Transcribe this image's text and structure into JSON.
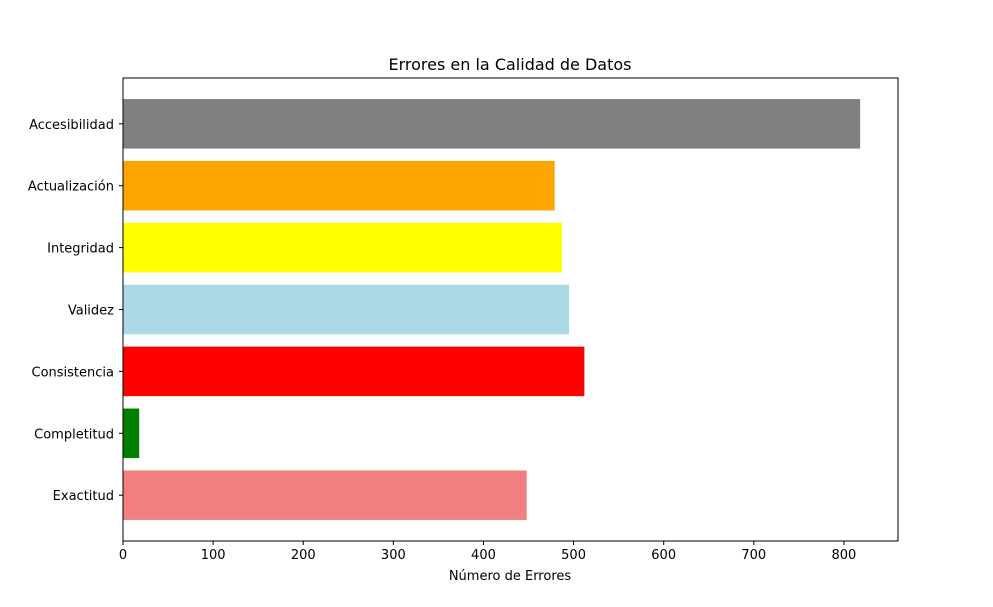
{
  "chart_data": {
    "type": "bar",
    "orientation": "horizontal",
    "title": "Errores en la Calidad de Datos",
    "xlabel": "Número de Errores",
    "ylabel": "",
    "xlim": [
      0,
      860
    ],
    "xticks": [
      0,
      100,
      200,
      300,
      400,
      500,
      600,
      700,
      800
    ],
    "grid": false,
    "categories": [
      "Exactitud",
      "Completitud",
      "Consistencia",
      "Validez",
      "Integridad",
      "Actualización",
      "Accesibilidad"
    ],
    "values": [
      448,
      18,
      512,
      495,
      487,
      479,
      818
    ],
    "colors": [
      "#f08080",
      "#008000",
      "#ff0000",
      "#add8e6",
      "#ffff00",
      "#ffa500",
      "#808080"
    ]
  }
}
